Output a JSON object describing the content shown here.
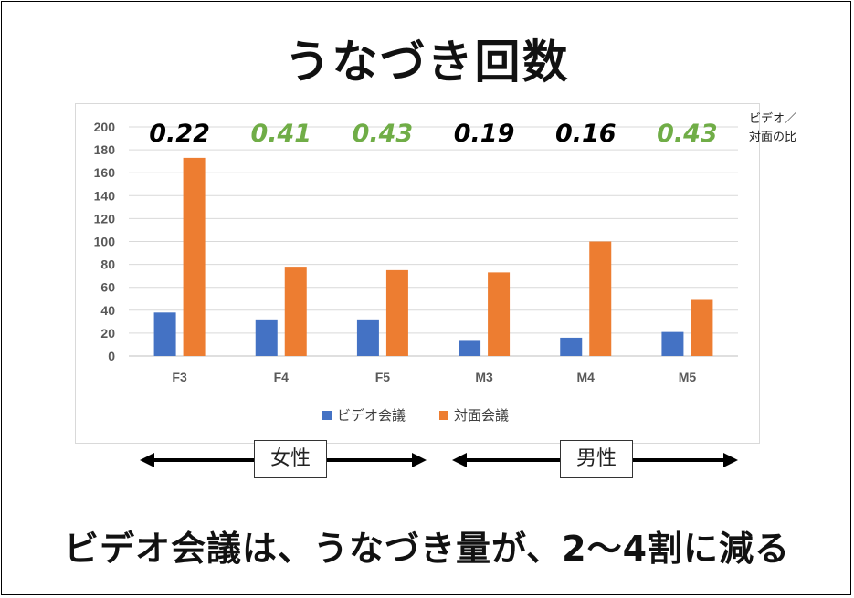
{
  "title": "うなづき回数",
  "ratio_label_line1": "ビデオ／",
  "ratio_label_line2": "対面の比",
  "gender_female": "女性",
  "gender_male": "男性",
  "headline": "ビデオ会議は、うなづき量が、2～4割に減る",
  "colors": {
    "video": "#4472c4",
    "face": "#ed7d31",
    "ratio_black": "#000000",
    "ratio_green": "#70ad47"
  },
  "chart_data": {
    "type": "bar",
    "categories": [
      "F3",
      "F4",
      "F5",
      "M3",
      "M4",
      "M5"
    ],
    "series": [
      {
        "name": "ビデオ会議",
        "values": [
          38,
          32,
          32,
          14,
          16,
          21
        ]
      },
      {
        "name": "対面会議",
        "values": [
          173,
          78,
          75,
          73,
          100,
          49
        ]
      }
    ],
    "ratios": [
      "0.22",
      "0.41",
      "0.43",
      "0.19",
      "0.16",
      "0.43"
    ],
    "ratio_colors": [
      "black",
      "green",
      "green",
      "black",
      "black",
      "green"
    ],
    "yticks": [
      0,
      20,
      40,
      60,
      80,
      100,
      120,
      140,
      160,
      180,
      200
    ],
    "ylim": [
      0,
      200
    ],
    "grid": true,
    "legend": "bottom"
  }
}
